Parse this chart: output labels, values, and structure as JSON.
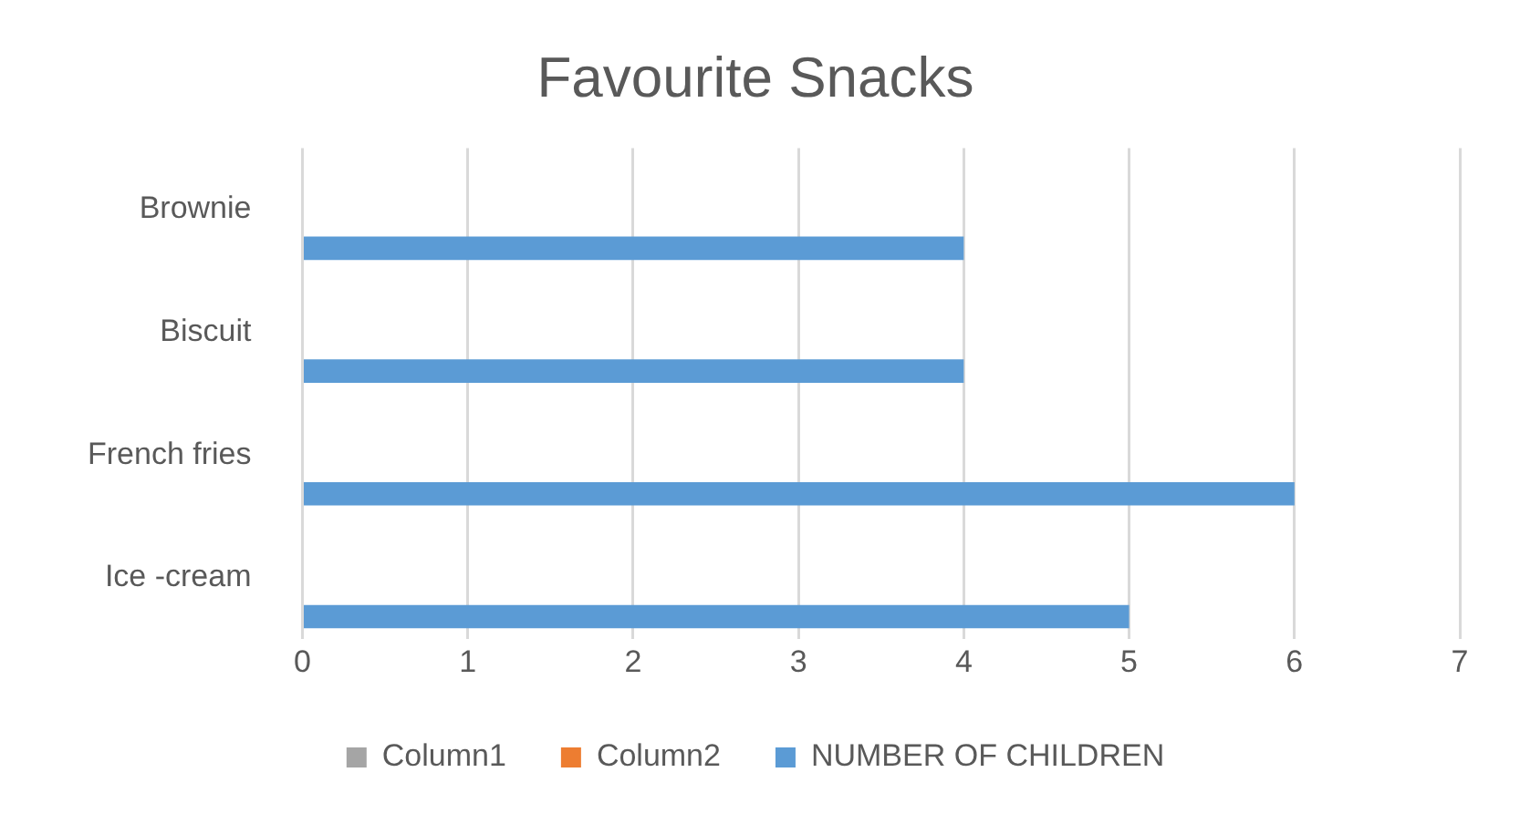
{
  "chart_data": {
    "type": "bar",
    "orientation": "horizontal",
    "title": "Favourite Snacks",
    "categories": [
      "Brownie",
      "Biscuit",
      "French fries",
      "Ice -cream"
    ],
    "series": [
      {
        "name": "Column1",
        "color": "#a5a5a5",
        "values": [
          null,
          null,
          null,
          null
        ]
      },
      {
        "name": "Column2",
        "color": "#ed7d31",
        "values": [
          null,
          null,
          null,
          null
        ]
      },
      {
        "name": "NUMBER OF CHILDREN",
        "color": "#5b9bd5",
        "values": [
          4,
          4,
          6,
          5
        ]
      }
    ],
    "xlim": [
      0,
      7
    ],
    "xticks": [
      0,
      1,
      2,
      3,
      4,
      5,
      6,
      7
    ],
    "grid": "x",
    "legend": "bottom"
  }
}
